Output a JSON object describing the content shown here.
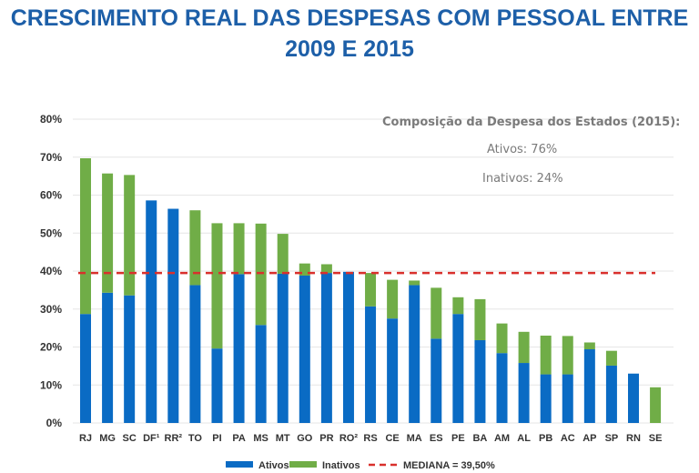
{
  "title_line1": "CRESCIMENTO REAL DAS DESPESAS COM PESSOAL ENTRE",
  "title_line2": "2009 E 2015",
  "annotation": {
    "heading": "Composição da Despesa dos Estados (2015):",
    "line1": "Ativos: 76%",
    "line2": "Inativos:  24%"
  },
  "chart_data": {
    "type": "bar",
    "stacked": true,
    "title": "CRESCIMENTO REAL DAS DESPESAS COM PESSOAL ENTRE 2009 E 2015",
    "xlabel": "",
    "ylabel": "",
    "ylim": [
      0,
      80
    ],
    "yticks": [
      "0%",
      "10%",
      "20%",
      "30%",
      "40%",
      "50%",
      "60%",
      "70%",
      "80%"
    ],
    "grid": true,
    "legend_position": "bottom",
    "categories": [
      "RJ",
      "MG",
      "SC",
      "DF¹",
      "RR²",
      "TO",
      "PI",
      "PA",
      "MS",
      "MT",
      "GO",
      "PR",
      "RO²",
      "RS",
      "CE",
      "MA",
      "ES",
      "PE",
      "BA",
      "AM",
      "AL",
      "PB",
      "AC",
      "AP",
      "SP",
      "RN",
      "SE"
    ],
    "series": [
      {
        "name": "Ativos",
        "color": "#0a6bc4",
        "values": [
          28.7,
          34.3,
          33.6,
          58.6,
          56.4,
          36.3,
          19.6,
          39.2,
          25.8,
          39.3,
          38.8,
          39.5,
          39.8,
          30.7,
          27.5,
          36.3,
          22.2,
          28.7,
          21.8,
          18.4,
          15.8,
          12.8,
          12.8,
          19.4,
          15.1,
          13.0,
          0
        ]
      },
      {
        "name": "Inativos",
        "color": "#70ad47",
        "values": [
          41.0,
          31.4,
          31.7,
          0,
          0,
          19.7,
          33.0,
          13.4,
          26.7,
          10.5,
          3.2,
          2.3,
          0,
          8.8,
          10.2,
          1.2,
          13.4,
          4.4,
          10.8,
          7.8,
          8.2,
          10.2,
          10.1,
          1.8,
          3.9,
          0,
          9.4
        ]
      }
    ],
    "reference_line": {
      "name": "MEDIANA = 39,50%",
      "value": 39.5,
      "color": "#d9302c",
      "style": "dashed"
    }
  }
}
